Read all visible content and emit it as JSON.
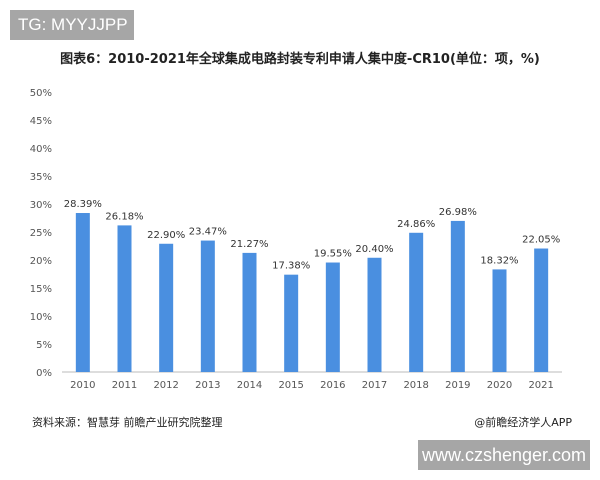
{
  "header": {
    "tag": "TG: MYYJJPP"
  },
  "footer": {
    "source": "资料来源：智慧芽 前瞻产业研究院整理",
    "brand": "@前瞻经济学人APP",
    "site": "www.czshenger.com"
  },
  "chart_data": {
    "type": "bar",
    "title": "图表6：2010-2021年全球集成电路封装专利申请人集中度-CR10(单位：项，%)",
    "categories": [
      "2010",
      "2011",
      "2012",
      "2013",
      "2014",
      "2015",
      "2016",
      "2017",
      "2018",
      "2019",
      "2020",
      "2021"
    ],
    "values": [
      28.39,
      26.18,
      22.9,
      23.47,
      21.27,
      17.38,
      19.55,
      20.4,
      24.86,
      26.98,
      18.32,
      22.05
    ],
    "data_labels": [
      "28.39%",
      "26.18%",
      "22.90%",
      "23.47%",
      "21.27%",
      "17.38%",
      "19.55%",
      "20.40%",
      "24.86%",
      "26.98%",
      "18.32%",
      "22.05%"
    ],
    "yticks": [
      "0%",
      "5%",
      "10%",
      "15%",
      "20%",
      "25%",
      "30%",
      "35%",
      "40%",
      "45%",
      "50%"
    ],
    "ylim": [
      0,
      50
    ],
    "grid": false,
    "bar_color": "#4a8fe0",
    "xlabel": "",
    "ylabel": ""
  }
}
